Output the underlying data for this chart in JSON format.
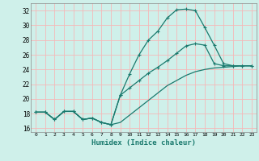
{
  "xlabel": "Humidex (Indice chaleur)",
  "bg_color": "#cff0ea",
  "grid_color": "#f5b8b8",
  "line_color": "#1a7a6e",
  "xlim": [
    -0.5,
    23.5
  ],
  "ylim": [
    15.5,
    33.0
  ],
  "xticks": [
    0,
    1,
    2,
    3,
    4,
    5,
    6,
    7,
    8,
    9,
    10,
    11,
    12,
    13,
    14,
    15,
    16,
    17,
    18,
    19,
    20,
    21,
    22,
    23
  ],
  "yticks": [
    16,
    18,
    20,
    22,
    24,
    26,
    28,
    30,
    32
  ],
  "line1_y": [
    18.2,
    18.2,
    17.2,
    18.3,
    18.3,
    17.2,
    17.4,
    16.8,
    16.5,
    20.5,
    23.4,
    26.0,
    28.0,
    29.2,
    31.0,
    32.1,
    32.2,
    32.0,
    29.7,
    27.3,
    24.8,
    24.5,
    24.5,
    24.5
  ],
  "line2_y": [
    18.2,
    18.2,
    17.2,
    18.3,
    18.3,
    17.2,
    17.4,
    16.8,
    16.5,
    20.5,
    21.5,
    22.5,
    23.5,
    24.3,
    25.2,
    26.2,
    27.2,
    27.5,
    27.3,
    24.8,
    24.5,
    24.5,
    24.5,
    24.5
  ],
  "line3_y": [
    18.2,
    18.2,
    17.2,
    18.3,
    18.3,
    17.2,
    17.4,
    16.8,
    16.5,
    16.8,
    17.8,
    18.8,
    19.8,
    20.8,
    21.8,
    22.5,
    23.2,
    23.7,
    24.0,
    24.2,
    24.3,
    24.4,
    24.5,
    24.5
  ]
}
